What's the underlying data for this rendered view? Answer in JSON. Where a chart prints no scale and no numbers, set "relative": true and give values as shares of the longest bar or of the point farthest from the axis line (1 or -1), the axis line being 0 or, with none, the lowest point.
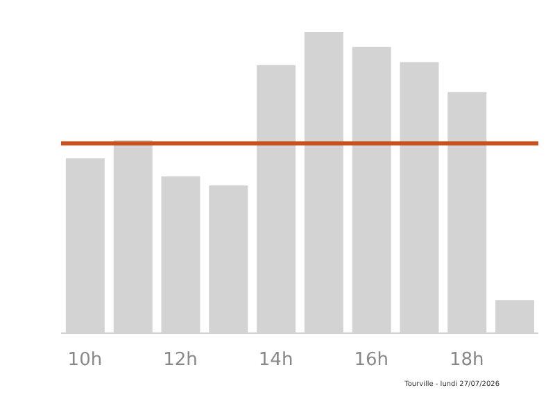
{
  "chart_data": {
    "type": "bar",
    "relative": true,
    "categories": [
      "10h",
      null,
      "12h",
      null,
      "14h",
      null,
      "16h",
      null,
      "18h",
      null
    ],
    "values": [
      0.58,
      0.64,
      0.52,
      0.49,
      0.89,
      1,
      0.95,
      0.9,
      0.8,
      0.11
    ],
    "color": "#d3d3d3",
    "ref_lines": [
      {
        "axis": "y",
        "value": 0.63,
        "color": "#c8501e"
      }
    ],
    "annotations": [
      "Tourville - lundi 27/07/2026"
    ],
    "grid": false,
    "legend": false
  }
}
